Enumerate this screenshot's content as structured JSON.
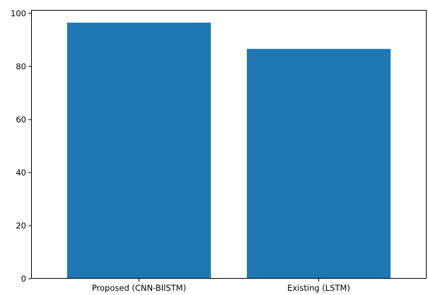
{
  "chart_data": {
    "type": "bar",
    "categories": [
      "Proposed (CNN-BIlSTM)",
      "Existing (LSTM)"
    ],
    "values": [
      96.5,
      86.6
    ],
    "title": "",
    "xlabel": "",
    "ylabel": "",
    "ylim": [
      0,
      101.3
    ],
    "yticks": [
      0,
      20,
      40,
      60,
      80,
      100
    ],
    "grid": false,
    "bar_color": "#1f77b4"
  }
}
